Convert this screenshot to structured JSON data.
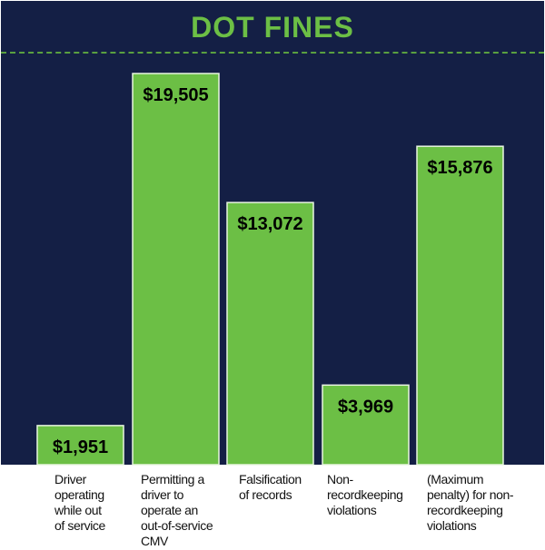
{
  "chart_data": {
    "type": "bar",
    "title": "DOT FINES",
    "xlabel": "",
    "ylabel": "",
    "ylim": [
      0,
      19505
    ],
    "grid": false,
    "colors": {
      "bar": "#6cbf45",
      "background": "#141f45",
      "title": "#6cbf45"
    },
    "categories": [
      "Driver\noperating\nwhile out\nof service",
      "Permitting a\ndriver to\noperate an\nout-of-service\nCMV",
      "Falsification\nof records",
      "Non-\nrecordkeeping\nviolations",
      "(Maximum\npenalty) for non-\nrecordkeeping\nviolations"
    ],
    "values": [
      1951,
      19505,
      13072,
      3969,
      15876
    ],
    "value_labels": [
      "$1,951",
      "$19,505",
      "$13,072",
      "$3,969",
      "$15,876"
    ]
  }
}
